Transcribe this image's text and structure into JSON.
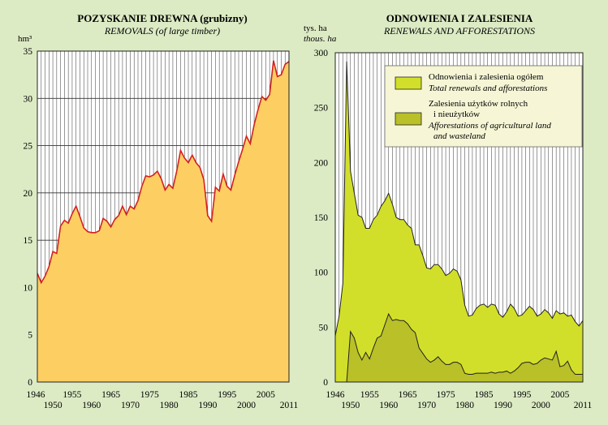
{
  "chart_data": [
    {
      "type": "area",
      "title": "POZYSKANIE DREWNA (grubizny)",
      "subtitle": "REMOVALS (of large timber)",
      "ylabel": "hm³",
      "ylim": [
        0,
        35
      ],
      "yticks": [
        0,
        5,
        10,
        15,
        20,
        25,
        30,
        35
      ],
      "xlim": [
        1946,
        2011
      ],
      "xticks_top": [
        "1946",
        "1955",
        "1965",
        "1975",
        "1985",
        "1995",
        "2005"
      ],
      "xticks_bottom": [
        "1950",
        "1960",
        "1970",
        "1980",
        "1990",
        "2000",
        "2011"
      ],
      "grid": "vertical",
      "colors": {
        "fill": "#fdcf63",
        "line": "#d42020"
      },
      "x": [
        1946,
        1947,
        1948,
        1949,
        1950,
        1951,
        1952,
        1953,
        1954,
        1955,
        1956,
        1957,
        1958,
        1959,
        1960,
        1961,
        1962,
        1963,
        1964,
        1965,
        1966,
        1967,
        1968,
        1969,
        1970,
        1971,
        1972,
        1973,
        1974,
        1975,
        1976,
        1977,
        1978,
        1979,
        1980,
        1981,
        1982,
        1983,
        1984,
        1985,
        1986,
        1987,
        1988,
        1989,
        1990,
        1991,
        1992,
        1993,
        1994,
        1995,
        1996,
        1997,
        1998,
        1999,
        2000,
        2001,
        2002,
        2003,
        2004,
        2005,
        2006,
        2007,
        2008,
        2009,
        2010,
        2011
      ],
      "series": [
        {
          "values": [
            11.5,
            10.5,
            11.2,
            12.2,
            13.8,
            13.6,
            16.5,
            17.1,
            16.8,
            17.8,
            18.6,
            17.5,
            16.3,
            15.9,
            15.8,
            15.8,
            16.0,
            17.3,
            17.0,
            16.4,
            17.2,
            17.6,
            18.6,
            17.7,
            18.6,
            18.3,
            19.2,
            20.7,
            21.8,
            21.7,
            21.9,
            22.3,
            21.5,
            20.3,
            20.9,
            20.5,
            22.3,
            24.5,
            23.7,
            23.2,
            24.0,
            23.2,
            22.7,
            21.4,
            17.6,
            17.0,
            20.6,
            20.2,
            22.0,
            20.7,
            20.3,
            21.9,
            23.3,
            24.6,
            26.0,
            25.2,
            27.2,
            28.8,
            30.2,
            29.8,
            30.4,
            34.0,
            32.3,
            32.5,
            33.6,
            33.9
          ]
        }
      ]
    },
    {
      "type": "area",
      "title": "ODNOWIENIA I ZALESIENIA",
      "subtitle": "RENEWALS AND AFFORESTATIONS",
      "ylabel": "tys. ha",
      "ylabel2": "thous. ha",
      "ylim": [
        0,
        300
      ],
      "yticks": [
        0,
        50,
        100,
        150,
        200,
        250,
        300
      ],
      "xlim": [
        1946,
        2011
      ],
      "xticks_top": [
        "1946",
        "1955",
        "1965",
        "1975",
        "1985",
        "1995",
        "2005"
      ],
      "xticks_bottom": [
        "1950",
        "1960",
        "1970",
        "1980",
        "1990",
        "2000",
        "2011"
      ],
      "grid": "vertical",
      "legend_position": "top-right",
      "x": [
        1946,
        1947,
        1948,
        1949,
        1950,
        1951,
        1952,
        1953,
        1954,
        1955,
        1956,
        1957,
        1958,
        1959,
        1960,
        1961,
        1962,
        1963,
        1964,
        1965,
        1966,
        1967,
        1968,
        1969,
        1970,
        1971,
        1972,
        1973,
        1974,
        1975,
        1976,
        1977,
        1978,
        1979,
        1980,
        1981,
        1982,
        1983,
        1984,
        1985,
        1986,
        1987,
        1988,
        1989,
        1990,
        1991,
        1992,
        1993,
        1994,
        1995,
        1996,
        1997,
        1998,
        1999,
        2000,
        2001,
        2002,
        2003,
        2004,
        2005,
        2006,
        2007,
        2008,
        2009,
        2010,
        2011
      ],
      "series": [
        {
          "name": "Odnowienia i zalesienia ogółem",
          "name_en": "Total renewals and afforestations",
          "color": "#d2df2a",
          "values": [
            42,
            60,
            90,
            292,
            192,
            172,
            152,
            150,
            140,
            140,
            148,
            152,
            160,
            165,
            172,
            162,
            150,
            148,
            148,
            143,
            140,
            125,
            125,
            115,
            104,
            103,
            107,
            107,
            103,
            97,
            99,
            103,
            101,
            93,
            70,
            60,
            61,
            67,
            70,
            71,
            68,
            71,
            70,
            62,
            59,
            64,
            71,
            67,
            60,
            61,
            65,
            69,
            66,
            60,
            62,
            66,
            63,
            58,
            65,
            62,
            63,
            60,
            61,
            55,
            51,
            56
          ]
        },
        {
          "name": "Zalesienia użytków rolnych i nieużytków",
          "name_en": "Afforestations of agricultural land and wasteland",
          "color": "#b9c028",
          "values": [
            0,
            0,
            0,
            0,
            46,
            40,
            27,
            20,
            27,
            21,
            31,
            40,
            42,
            52,
            62,
            56,
            57,
            56,
            56,
            53,
            48,
            45,
            31,
            26,
            21,
            18,
            20,
            23,
            19,
            16,
            16,
            18,
            18,
            16,
            8,
            7,
            7,
            8,
            8,
            8,
            8,
            9,
            8,
            9,
            9,
            10,
            8,
            10,
            13,
            17,
            18,
            18,
            16,
            17,
            20,
            22,
            21,
            20,
            28,
            14,
            15,
            19,
            11,
            7,
            7,
            7
          ]
        }
      ]
    }
  ]
}
